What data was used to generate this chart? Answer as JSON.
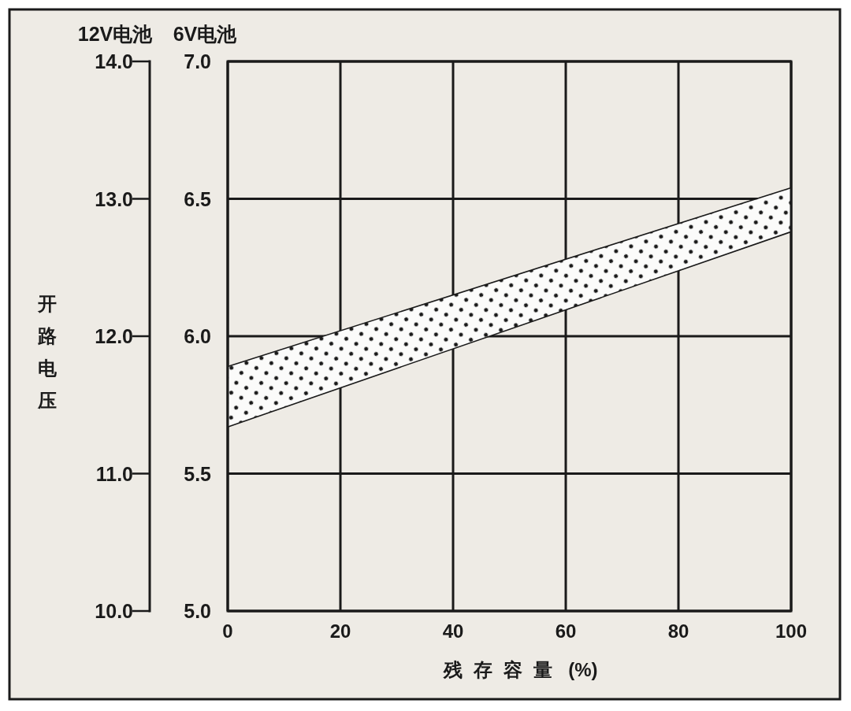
{
  "chart_data": {
    "type": "area",
    "xlabel": "残存容量 (%)",
    "ylabel": "6V电池",
    "y2label": "12V电池",
    "annotations": [
      "开路电压"
    ],
    "x": [
      0,
      100
    ],
    "series": [
      {
        "color": "#1a1a1a",
        "values": [
          null,
          null
        ],
        "lower": [
          5.67,
          6.38
        ],
        "upper": [
          5.89,
          6.54
        ]
      }
    ],
    "xlim": [
      0,
      100
    ],
    "xticks": [
      0,
      20,
      40,
      60,
      80,
      100
    ],
    "ylim": [
      5,
      7
    ],
    "yticks": [
      {
        "value": 5,
        "label": "5.0"
      },
      {
        "value": 5.5,
        "label": "5.5"
      },
      {
        "value": 6,
        "label": "6.0"
      },
      {
        "value": 6.5,
        "label": "6.5"
      },
      {
        "value": 7,
        "label": "7.0"
      }
    ],
    "y2lim": [
      10,
      14
    ],
    "y2ticks": [
      {
        "value": 10,
        "label": "10.0"
      },
      {
        "value": 11,
        "label": "11.0"
      },
      {
        "value": 12,
        "label": "12.0"
      },
      {
        "value": 13,
        "label": "13.0"
      },
      {
        "value": 14,
        "label": "14.0"
      }
    ],
    "grid": true
  }
}
